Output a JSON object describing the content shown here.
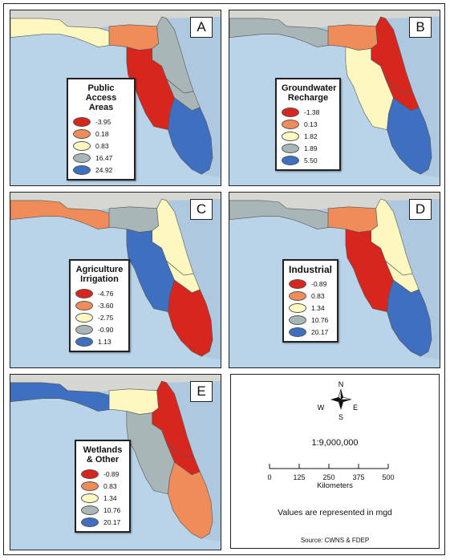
{
  "colors": {
    "red": "#d7261e",
    "orange": "#f08c5a",
    "yellow": "#fdf8c0",
    "gray": "#a9b6b8",
    "blue": "#3f6fc0",
    "water": "#aec8df",
    "land_gray": "#d6d6d2"
  },
  "panels": [
    {
      "letter": "A",
      "legend_title": "Public Access Areas",
      "legend_title_lines": [
        "Public",
        "Access Areas"
      ],
      "legend": [
        {
          "value": "-3.95",
          "color": "#d7261e"
        },
        {
          "value": "0.18",
          "color": "#f08c5a"
        },
        {
          "value": "0.83",
          "color": "#fdf8c0"
        },
        {
          "value": "16.47",
          "color": "#a9b6b8"
        },
        {
          "value": "24.92",
          "color": "#3f6fc0"
        }
      ],
      "regions": {
        "northwest": "#fdf8c0",
        "north_central": "#f08c5a",
        "northeast": "#a9b6b8",
        "southwest": "#d7261e",
        "central": "#a9b6b8",
        "south": "#3f6fc0"
      }
    },
    {
      "letter": "B",
      "legend_title": "Groundwater Recharge",
      "legend_title_lines": [
        "Groundwater",
        "Recharge"
      ],
      "legend": [
        {
          "value": "-1.38",
          "color": "#d7261e"
        },
        {
          "value": "0.13",
          "color": "#f08c5a"
        },
        {
          "value": "1.82",
          "color": "#fdf8c0"
        },
        {
          "value": "1.89",
          "color": "#a9b6b8"
        },
        {
          "value": "5.50",
          "color": "#3f6fc0"
        }
      ],
      "regions": {
        "northwest": "#a9b6b8",
        "north_central": "#f08c5a",
        "northeast": "#d7261e",
        "southwest": "#fdf8c0",
        "central": "#d7261e",
        "south": "#3f6fc0"
      }
    },
    {
      "letter": "C",
      "legend_title": "Agriculture Irrigation",
      "legend_title_lines": [
        "Agriculture",
        "Irrigation"
      ],
      "legend": [
        {
          "value": "-4.76",
          "color": "#d7261e"
        },
        {
          "value": "-3.60",
          "color": "#f08c5a"
        },
        {
          "value": "-2.75",
          "color": "#fdf8c0"
        },
        {
          "value": "-0.90",
          "color": "#a9b6b8"
        },
        {
          "value": "1.13",
          "color": "#3f6fc0"
        }
      ],
      "regions": {
        "northwest": "#f08c5a",
        "north_central": "#a9b6b8",
        "northeast": "#fdf8c0",
        "southwest": "#3f6fc0",
        "central": "#fdf8c0",
        "south": "#d7261e"
      }
    },
    {
      "letter": "D",
      "legend_title": "Industrial",
      "legend_title_lines": [
        "Industrial"
      ],
      "legend": [
        {
          "value": "-0.89",
          "color": "#d7261e"
        },
        {
          "value": "0.83",
          "color": "#f08c5a"
        },
        {
          "value": "1.34",
          "color": "#fdf8c0"
        },
        {
          "value": "10.76",
          "color": "#a9b6b8"
        },
        {
          "value": "20.17",
          "color": "#3f6fc0"
        }
      ],
      "regions": {
        "northwest": "#a9b6b8",
        "north_central": "#f08c5a",
        "northeast": "#fdf8c0",
        "southwest": "#d7261e",
        "central": "#fdf8c0",
        "south": "#3f6fc0"
      }
    },
    {
      "letter": "E",
      "legend_title": "Wetlands & Other",
      "legend_title_lines": [
        "Wetlands",
        "& Other"
      ],
      "legend": [
        {
          "value": "-0.89",
          "color": "#d7261e"
        },
        {
          "value": "0.83",
          "color": "#f08c5a"
        },
        {
          "value": "1.34",
          "color": "#fdf8c0"
        },
        {
          "value": "10.76",
          "color": "#a9b6b8"
        },
        {
          "value": "20.17",
          "color": "#3f6fc0"
        }
      ],
      "regions": {
        "northwest": "#3f6fc0",
        "north_central": "#fdf8c0",
        "northeast": "#d7261e",
        "southwest": "#a9b6b8",
        "central": "#d7261e",
        "south": "#f08c5a"
      }
    }
  ],
  "info": {
    "compass": {
      "n": "N",
      "s": "S",
      "e": "E",
      "w": "W"
    },
    "scale_ratio": "1:9,000,000",
    "scale_ticks": [
      "0",
      "125",
      "250",
      "375",
      "500"
    ],
    "scale_unit": "Kilometers",
    "units_note": "Values are represented in mgd",
    "source": "Source: CWNS & FDEP"
  }
}
